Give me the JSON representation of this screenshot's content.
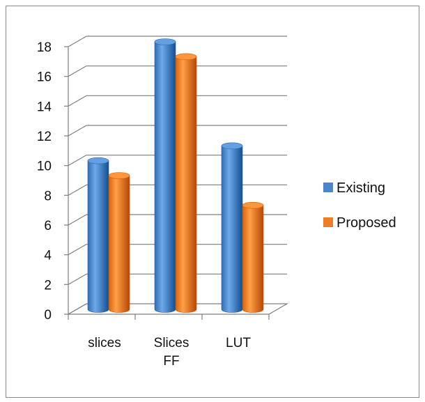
{
  "chart_data": {
    "type": "bar",
    "style": "3d-cylinder",
    "categories": [
      "slices",
      "Slices FF",
      "LUT"
    ],
    "category_lines": [
      [
        "slices"
      ],
      [
        "Slices",
        "FF"
      ],
      [
        "LUT"
      ]
    ],
    "series": [
      {
        "name": "Existing",
        "values": [
          10,
          18,
          11
        ],
        "color": "#4a86c8"
      },
      {
        "name": "Proposed",
        "values": [
          9,
          17,
          7
        ],
        "color": "#ef7d25"
      }
    ],
    "yticks": [
      0,
      2,
      4,
      6,
      8,
      10,
      12,
      14,
      16,
      18
    ],
    "ylim": [
      0,
      18
    ],
    "grid": true,
    "legend_position": "right",
    "title": "",
    "xlabel": "",
    "ylabel": ""
  }
}
